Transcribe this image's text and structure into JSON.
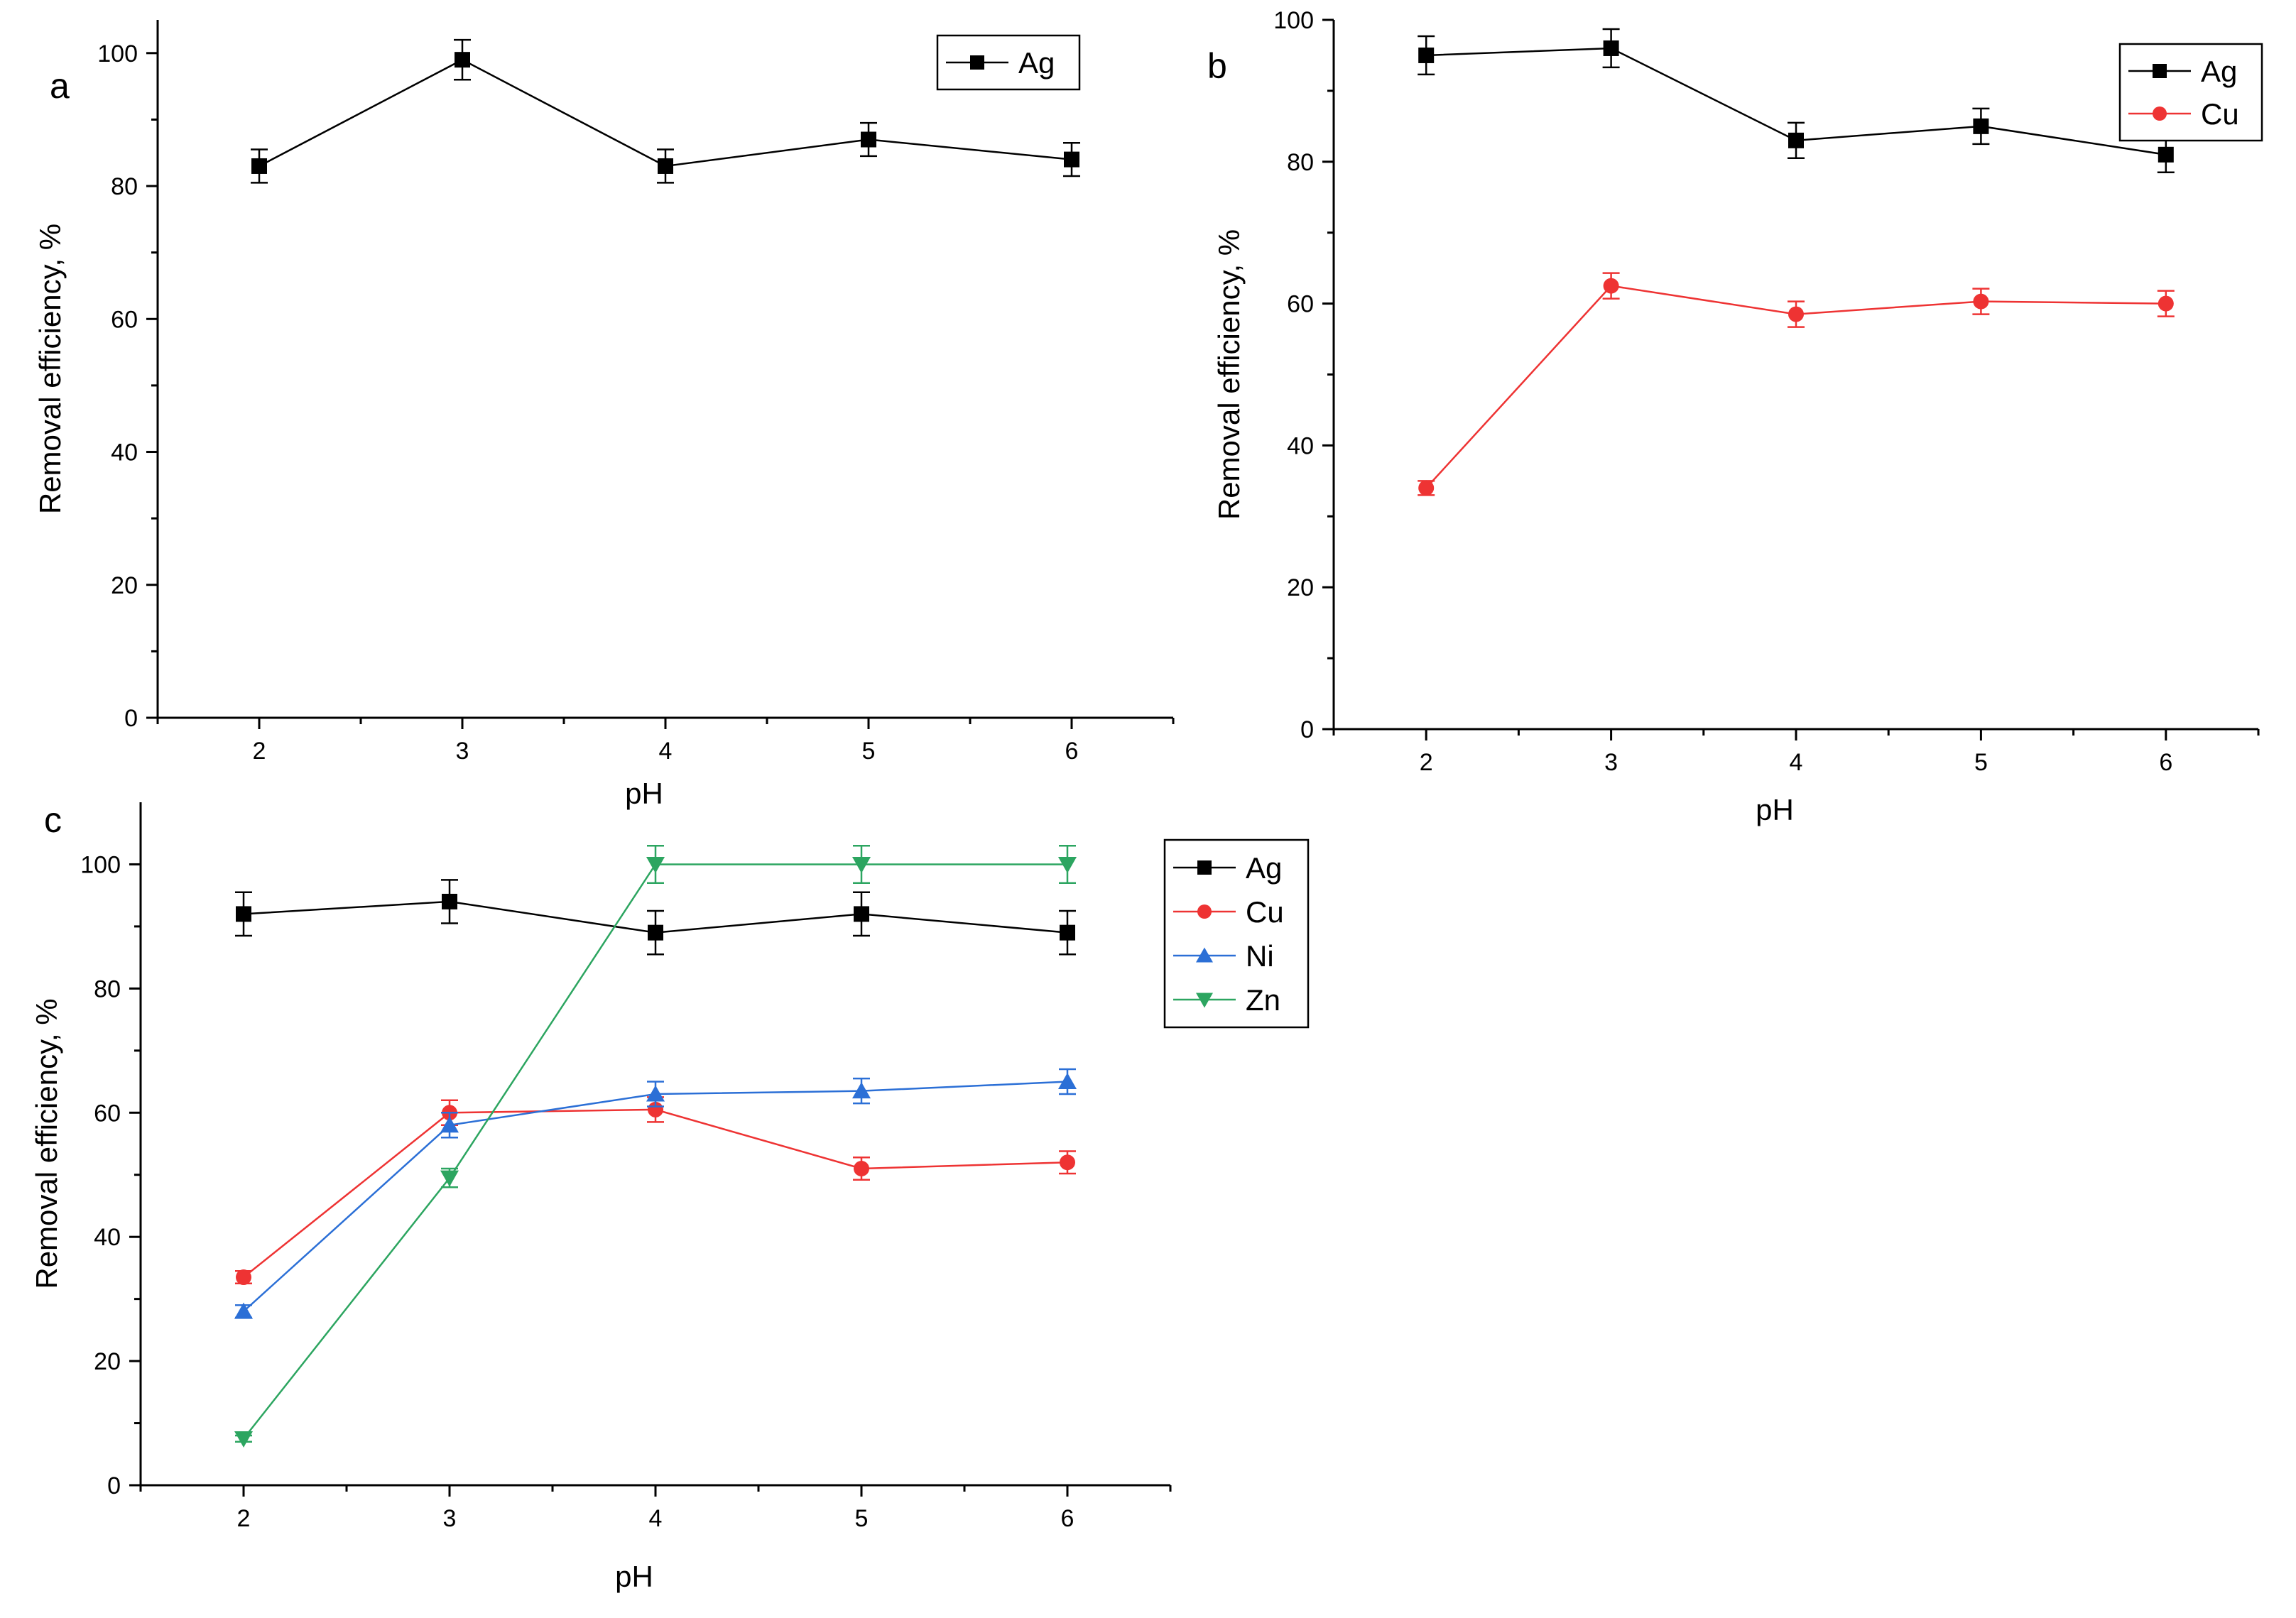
{
  "chart_data": [
    {
      "panel": "a",
      "type": "line",
      "xlabel": "pH",
      "ylabel": "Removal efficiency, %",
      "xlim": [
        1.5,
        6.5
      ],
      "ylim": [
        0,
        105
      ],
      "xticks": [
        2,
        3,
        4,
        5,
        6
      ],
      "xtick_labels": [
        "2",
        "3",
        "4",
        "5",
        "6"
      ],
      "yticks": [
        0,
        20,
        40,
        60,
        80,
        100
      ],
      "ytick_labels": [
        "0",
        "20",
        "40",
        "60",
        "80",
        "100"
      ],
      "legend_position": "top-right",
      "series": [
        {
          "name": "Ag",
          "color": "#000000",
          "marker": "square",
          "x": [
            2,
            3,
            4,
            5,
            6
          ],
          "values": [
            83,
            99,
            83,
            87,
            84
          ],
          "errors": [
            2.5,
            3,
            2.5,
            2.5,
            2.5
          ]
        }
      ]
    },
    {
      "panel": "b",
      "type": "line",
      "xlabel": "pH",
      "ylabel": "Removal efficiency, %",
      "xlim": [
        1.5,
        6.5
      ],
      "ylim": [
        0,
        100
      ],
      "xticks": [
        2,
        3,
        4,
        5,
        6
      ],
      "xtick_labels": [
        "2",
        "3",
        "4",
        "5",
        "6"
      ],
      "yticks": [
        0,
        20,
        40,
        60,
        80,
        100
      ],
      "ytick_labels": [
        "0",
        "20",
        "40",
        "60",
        "80",
        "100"
      ],
      "legend_position": "top-right",
      "series": [
        {
          "name": "Ag",
          "color": "#000000",
          "marker": "square",
          "x": [
            2,
            3,
            4,
            5,
            6
          ],
          "values": [
            95,
            96,
            83,
            85,
            81
          ],
          "errors": [
            2.7,
            2.7,
            2.5,
            2.5,
            2.5
          ]
        },
        {
          "name": "Cu",
          "color": "#ee3333",
          "marker": "circle",
          "x": [
            2,
            3,
            4,
            5,
            6
          ],
          "values": [
            34,
            62.5,
            58.5,
            60.3,
            60
          ],
          "errors": [
            1,
            1.8,
            1.8,
            1.8,
            1.8
          ]
        }
      ]
    },
    {
      "panel": "c",
      "type": "line",
      "xlabel": "pH",
      "ylabel": "Removal efficiency, %",
      "xlim": [
        1.5,
        6.5
      ],
      "ylim": [
        0,
        110
      ],
      "xticks": [
        2,
        3,
        4,
        5,
        6
      ],
      "xtick_labels": [
        "2",
        "3",
        "4",
        "5",
        "6"
      ],
      "yticks": [
        0,
        20,
        40,
        60,
        80,
        100
      ],
      "ytick_labels": [
        "0",
        "20",
        "40",
        "60",
        "80",
        "100"
      ],
      "legend_position": "outside-right",
      "series": [
        {
          "name": "Ag",
          "color": "#000000",
          "marker": "square",
          "x": [
            2,
            3,
            4,
            5,
            6
          ],
          "values": [
            92,
            94,
            89,
            92,
            89
          ],
          "errors": [
            3.5,
            3.5,
            3.5,
            3.5,
            3.5
          ]
        },
        {
          "name": "Cu",
          "color": "#ee3333",
          "marker": "circle",
          "x": [
            2,
            3,
            4,
            5,
            6
          ],
          "values": [
            33.5,
            60,
            60.5,
            51,
            52
          ],
          "errors": [
            1,
            2,
            2,
            1.8,
            1.8
          ]
        },
        {
          "name": "Ni",
          "color": "#2b6fd6",
          "marker": "triangle-up",
          "x": [
            2,
            3,
            4,
            5,
            6
          ],
          "values": [
            28,
            58,
            63,
            63.5,
            65
          ],
          "errors": [
            1,
            2,
            2,
            2,
            2
          ]
        },
        {
          "name": "Zn",
          "color": "#2ca560",
          "marker": "triangle-down",
          "x": [
            2,
            3,
            4,
            5,
            6
          ],
          "values": [
            7.5,
            49.5,
            100,
            100,
            100
          ],
          "errors": [
            0.5,
            1.5,
            3,
            3,
            3
          ]
        }
      ]
    }
  ]
}
